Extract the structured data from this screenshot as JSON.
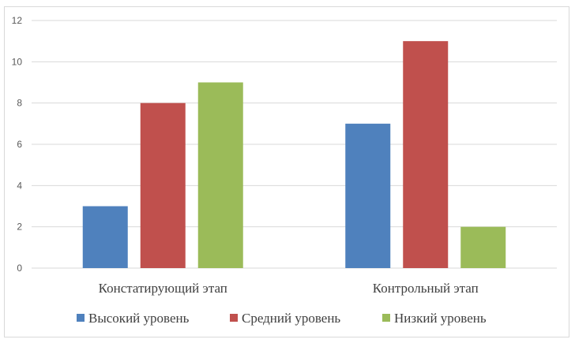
{
  "chart_data": {
    "type": "bar",
    "categories": [
      "Констатирующий этап",
      "Контрольный этап"
    ],
    "series": [
      {
        "name": "Высокий уровень",
        "values": [
          3,
          7
        ],
        "color": "#4f81bd"
      },
      {
        "name": "Средний уровень",
        "values": [
          8,
          11
        ],
        "color": "#c0504d"
      },
      {
        "name": "Низкий уровень",
        "values": [
          9,
          2
        ],
        "color": "#9bbb59"
      }
    ],
    "ylim": [
      0,
      12
    ],
    "yticks": [
      0,
      2,
      4,
      6,
      8,
      10,
      12
    ],
    "grid": true,
    "legend_position": "bottom",
    "gridline_color": "#d9d9d9"
  }
}
